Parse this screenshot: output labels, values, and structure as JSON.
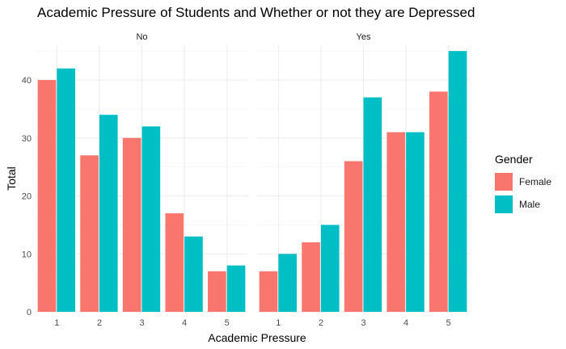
{
  "chart_data": {
    "type": "bar",
    "title": "Academic Pressure of Students and Whether or not they are Depressed",
    "xlabel": "Academic Pressure",
    "ylabel": "Total",
    "ylim": [
      0,
      46
    ],
    "yticks": [
      0,
      10,
      20,
      30,
      40
    ],
    "categories": [
      "1",
      "2",
      "3",
      "4",
      "5"
    ],
    "grid": true,
    "legend": {
      "title": "Gender",
      "position": "right"
    },
    "series_colors": {
      "Female": "#F8766D",
      "Male": "#00BFC4"
    },
    "panels": [
      {
        "label": "No",
        "series": [
          {
            "name": "Female",
            "values": [
              40,
              27,
              30,
              17,
              7
            ]
          },
          {
            "name": "Male",
            "values": [
              42,
              34,
              32,
              13,
              8
            ]
          }
        ]
      },
      {
        "label": "Yes",
        "series": [
          {
            "name": "Female",
            "values": [
              7,
              12,
              26,
              31,
              38
            ]
          },
          {
            "name": "Male",
            "values": [
              10,
              15,
              37,
              31,
              45
            ]
          }
        ]
      }
    ]
  }
}
